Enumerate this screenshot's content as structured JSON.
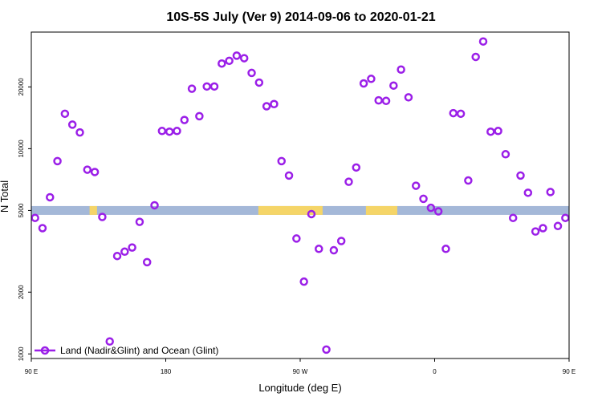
{
  "chart_data": {
    "type": "scatter",
    "title": "10S-5S July (Ver 9)   2014-09-06 to 2020-01-21",
    "xlabel": "Longitude (deg E)",
    "ylabel": "N Total",
    "x_scale": "linear",
    "y_scale": "log",
    "xlim": [
      90,
      450
    ],
    "ylim": [
      950,
      37000
    ],
    "x_ticks": [
      {
        "value": 90,
        "label": "90 E"
      },
      {
        "value": 180,
        "label": "180"
      },
      {
        "value": 270,
        "label": "90 W"
      },
      {
        "value": 360,
        "label": "0"
      },
      {
        "value": 450,
        "label": "90 E"
      },
      {
        "value": 540,
        "label": "180"
      }
    ],
    "y_ticks": [
      {
        "value": 1000,
        "label": "1000"
      },
      {
        "value": 2000,
        "label": "2000"
      },
      {
        "value": 5000,
        "label": "5000"
      },
      {
        "value": 10000,
        "label": "10000"
      },
      {
        "value": 20000,
        "label": "20000"
      }
    ],
    "grid": false,
    "legend_position": "bottom-left",
    "colors": {
      "series": "#9b1fe8",
      "ocean": "#a4b8d8",
      "land": "#f5d568",
      "frame": "#000000"
    },
    "land_band": {
      "y_center": 5000,
      "land_ranges": [
        [
          129,
          134
        ],
        [
          242,
          285
        ],
        [
          314,
          335
        ],
        [
          456,
          464
        ],
        [
          525,
          532
        ]
      ]
    },
    "series": [
      {
        "name": "Land (Nadir&Glint) and Ocean (Glint)",
        "x": [
          92.5,
          97.5,
          102.5,
          107.5,
          112.5,
          117.5,
          122.5,
          127.5,
          132.5,
          137.5,
          142.5,
          147.5,
          152.5,
          157.5,
          162.5,
          167.5,
          172.5,
          177.5,
          182.5,
          187.5,
          192.5,
          197.5,
          202.5,
          207.5,
          212.5,
          217.5,
          222.5,
          227.5,
          232.5,
          237.5,
          242.5,
          247.5,
          252.5,
          257.5,
          262.5,
          267.5,
          272.5,
          277.5,
          282.5,
          287.5,
          292.5,
          297.5,
          302.5,
          307.5,
          312.5,
          317.5,
          322.5,
          327.5,
          332.5,
          337.5,
          342.5,
          347.5,
          352.5,
          357.5,
          362.5,
          367.5,
          372.5,
          377.5,
          382.5,
          387.5,
          392.5,
          397.5,
          402.5,
          407.5,
          412.5,
          417.5,
          422.5,
          427.5,
          432.5,
          437.5,
          442.5,
          447.5
        ],
        "y": [
          4600,
          4100,
          5800,
          8700,
          14800,
          13100,
          12000,
          7900,
          7700,
          4650,
          1150,
          3000,
          3150,
          3300,
          4400,
          2800,
          5300,
          12200,
          12100,
          12200,
          13800,
          19600,
          14400,
          20100,
          20100,
          26000,
          26800,
          28400,
          27600,
          23400,
          21000,
          16100,
          16500,
          8700,
          7400,
          3650,
          2250,
          4800,
          3250,
          1050,
          3200,
          3550,
          6900,
          8100,
          20800,
          21900,
          17200,
          17100,
          20300,
          24300,
          17800,
          6600,
          5700,
          5150,
          4950,
          3250,
          14900,
          14800,
          7000,
          28000,
          33300,
          12100,
          12200,
          9400,
          4600,
          7400,
          6100,
          3950,
          4100,
          6150,
          4200,
          4600
        ]
      }
    ]
  }
}
